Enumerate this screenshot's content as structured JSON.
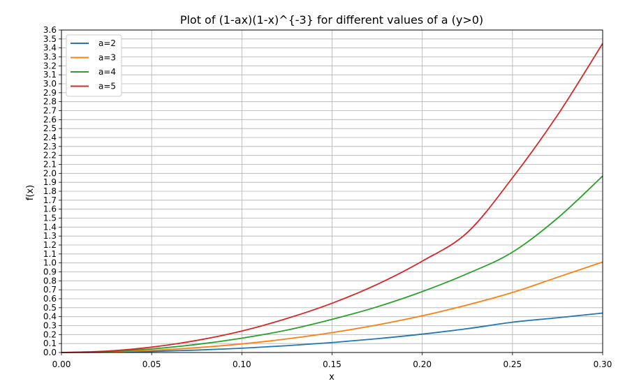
{
  "chart_data": {
    "type": "line",
    "title": "Plot of (1-ax)(1-x)^{-3} for different values of a (y>0)",
    "xlabel": "x",
    "ylabel": "f(x)",
    "xlim": [
      0.0,
      0.3
    ],
    "ylim": [
      0.0,
      3.6
    ],
    "grid": true,
    "legend_position": "top-left",
    "x_ticks": [
      "0.00",
      "0.05",
      "0.10",
      "0.15",
      "0.20",
      "0.25",
      "0.30"
    ],
    "y_ticks": [
      "0.0",
      "0.1",
      "0.2",
      "0.3",
      "0.4",
      "0.5",
      "0.6",
      "0.7",
      "0.8",
      "0.9",
      "1.0",
      "1.1",
      "1.2",
      "1.3",
      "1.4",
      "1.5",
      "1.6",
      "1.7",
      "1.8",
      "1.9",
      "2.0",
      "2.1",
      "2.2",
      "2.3",
      "2.4",
      "2.5",
      "2.6",
      "2.7",
      "2.8",
      "2.9",
      "3.0",
      "3.1",
      "3.2",
      "3.3",
      "3.4",
      "3.5",
      "3.6"
    ],
    "x": [
      0.0,
      0.025,
      0.05,
      0.075,
      0.1,
      0.125,
      0.15,
      0.175,
      0.2,
      0.225,
      0.25,
      0.275,
      0.3
    ],
    "series": [
      {
        "name": "a=2",
        "color": "#1f77b4",
        "values": [
          0.0,
          0.003,
          0.012,
          0.027,
          0.048,
          0.076,
          0.111,
          0.154,
          0.205,
          0.266,
          0.338,
          0.388,
          0.44
        ]
      },
      {
        "name": "a=3",
        "color": "#ff7f0e",
        "values": [
          0.0,
          0.006,
          0.024,
          0.054,
          0.096,
          0.152,
          0.222,
          0.308,
          0.41,
          0.531,
          0.67,
          0.84,
          1.01
        ]
      },
      {
        "name": "a=4",
        "color": "#2ca02c",
        "values": [
          0.0,
          0.01,
          0.04,
          0.09,
          0.16,
          0.25,
          0.37,
          0.51,
          0.68,
          0.88,
          1.12,
          1.5,
          1.97
        ]
      },
      {
        "name": "a=5",
        "color": "#d62728",
        "values": [
          0.0,
          0.015,
          0.06,
          0.135,
          0.24,
          0.38,
          0.55,
          0.76,
          1.02,
          1.34,
          1.95,
          2.65,
          3.45
        ]
      }
    ]
  }
}
